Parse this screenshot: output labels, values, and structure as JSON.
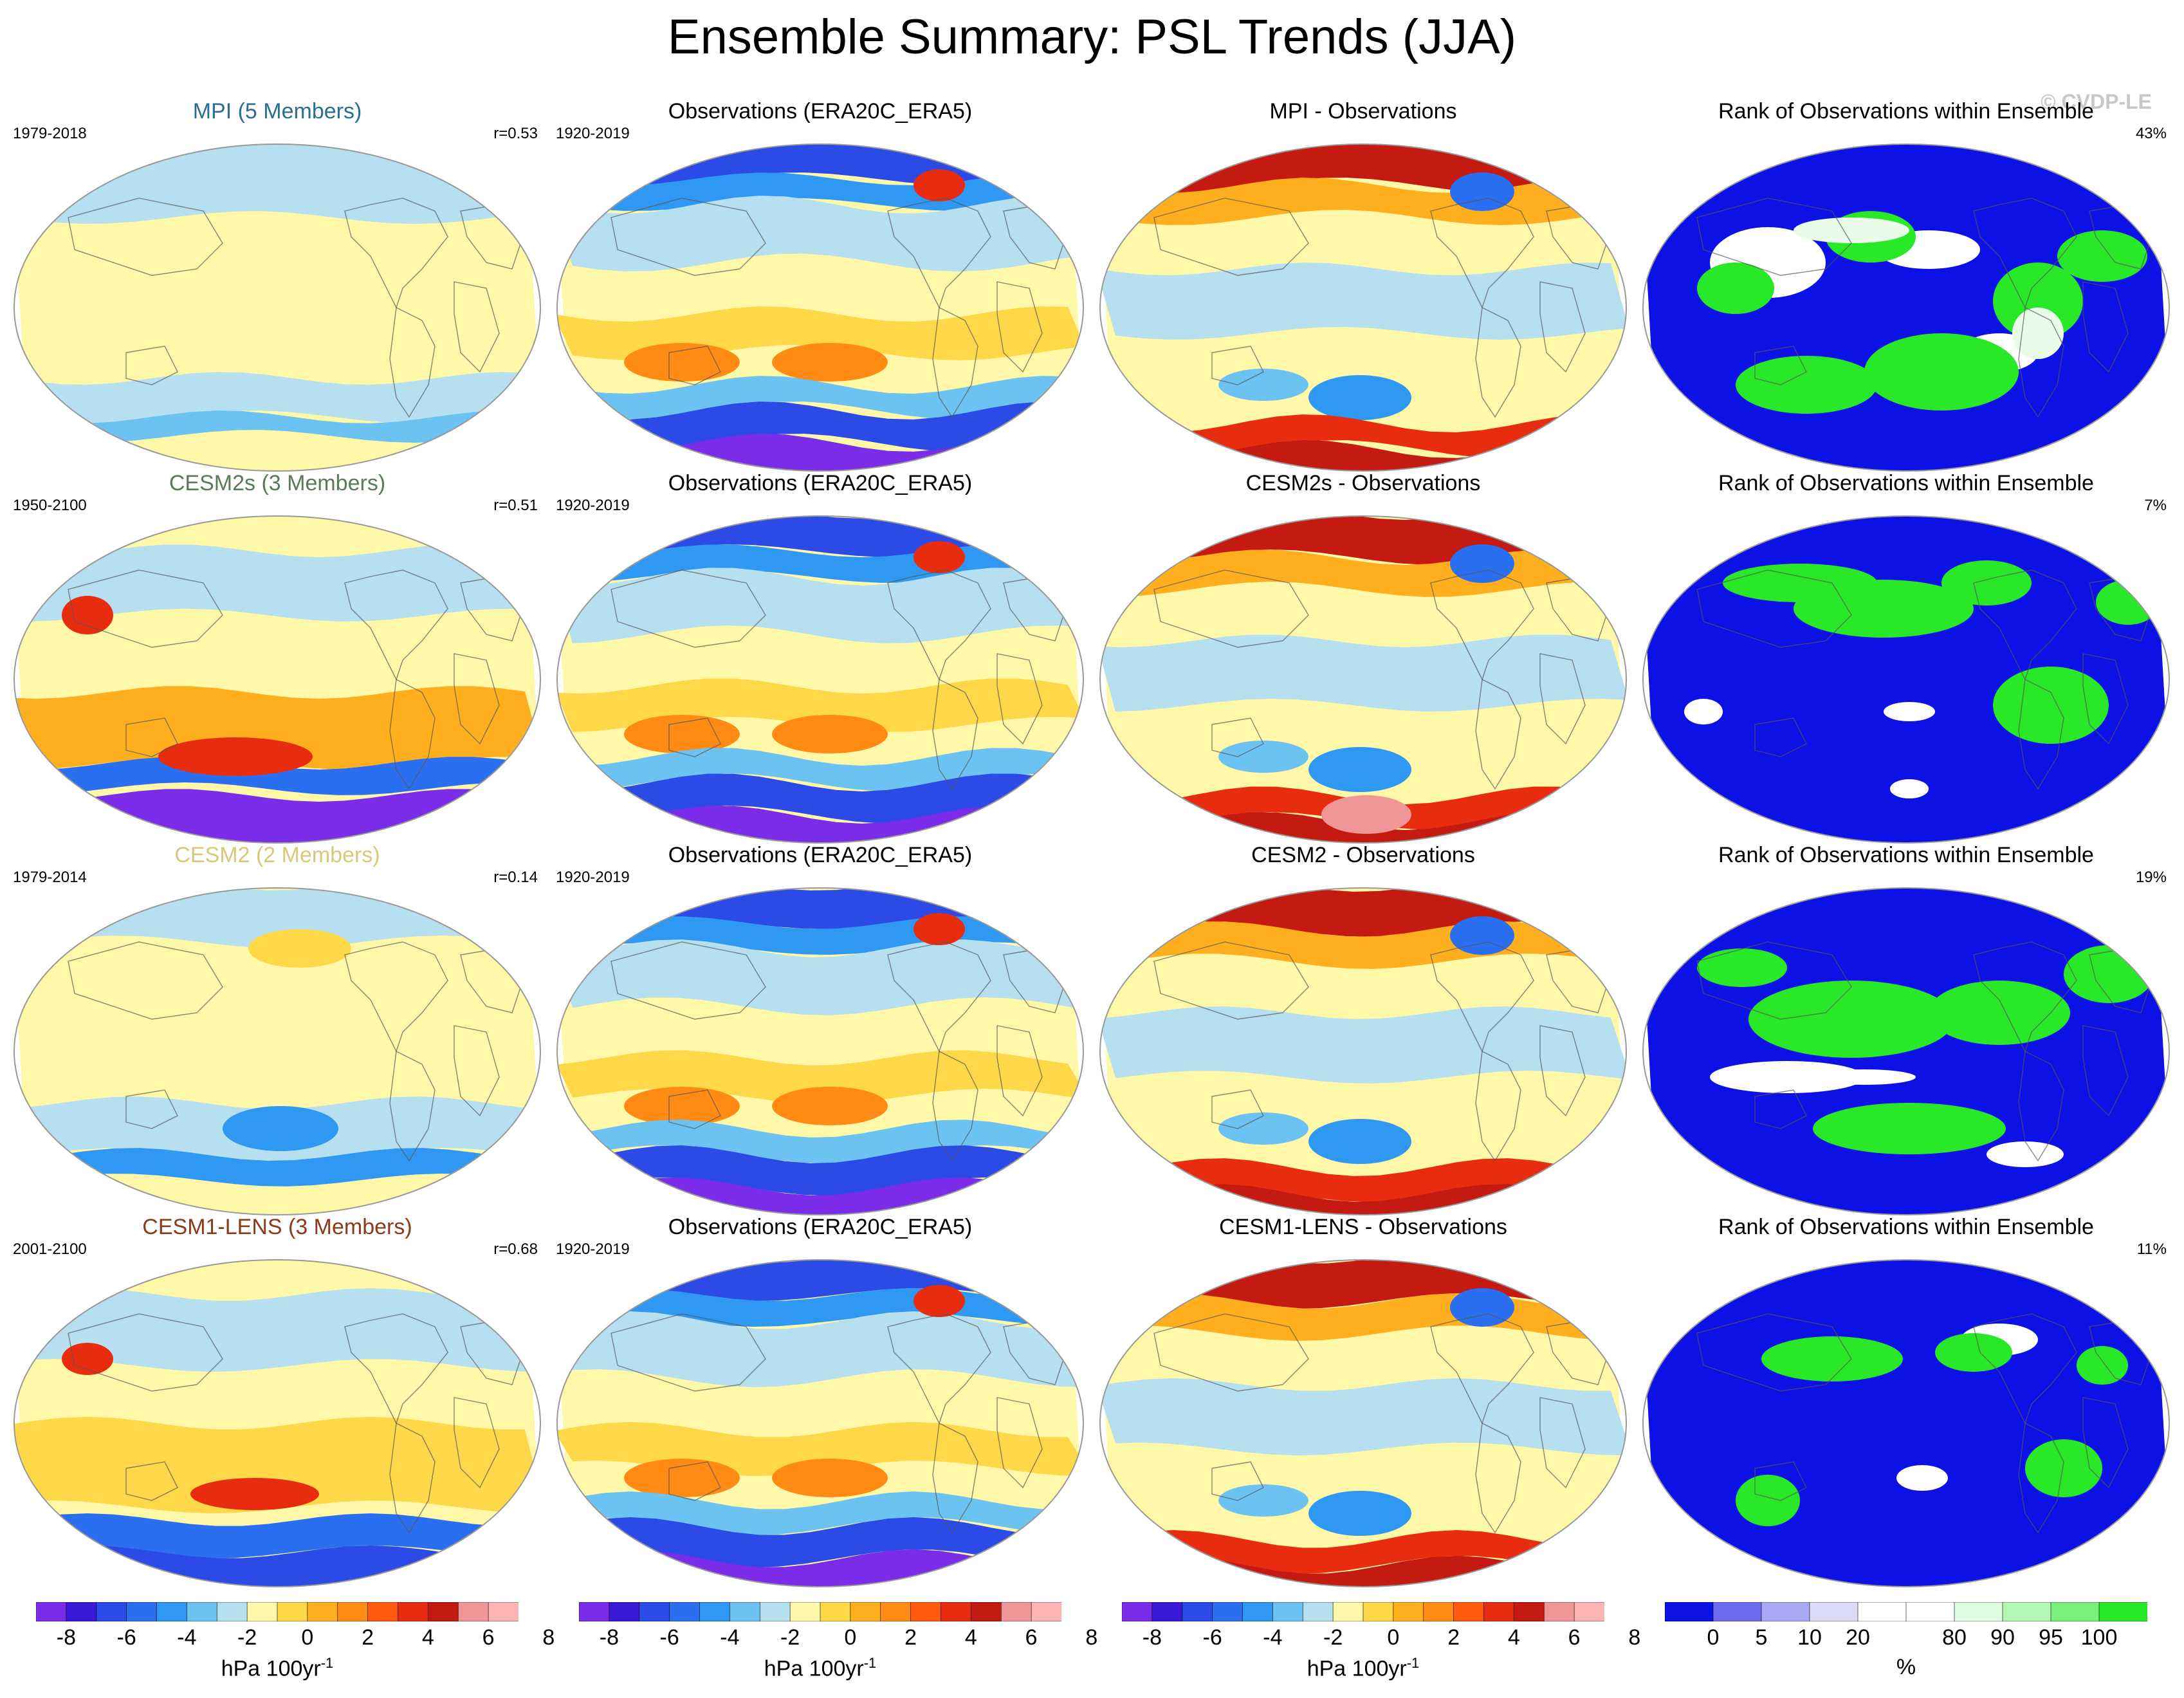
{
  "title": "Ensemble Summary: PSL Trends (JJA)",
  "watermark": "© CVDP-LE",
  "rows": [
    {
      "model_title": "MPI (5 Members)",
      "model_color": "#2a6f8f",
      "model_period": "1979-2018",
      "model_r": "r=0.53",
      "obs_title": "Observations (ERA20C_ERA5)",
      "obs_period": "1920-2019",
      "diff_title": "MPI - Observations",
      "rank_title": "Rank of Observations within Ensemble",
      "rank_pct": "43%"
    },
    {
      "model_title": "CESM2s (3 Members)",
      "model_color": "#5a7a5a",
      "model_period": "1950-2100",
      "model_r": "r=0.51",
      "obs_title": "Observations (ERA20C_ERA5)",
      "obs_period": "1920-2019",
      "diff_title": "CESM2s - Observations",
      "rank_title": "Rank of Observations within Ensemble",
      "rank_pct": "7%"
    },
    {
      "model_title": "CESM2 (2 Members)",
      "model_color": "#d8c87a",
      "model_period": "1979-2014",
      "model_r": "r=0.14",
      "obs_title": "Observations (ERA20C_ERA5)",
      "obs_period": "1920-2019",
      "diff_title": "CESM2 - Observations",
      "rank_title": "Rank of Observations within Ensemble",
      "rank_pct": "19%"
    },
    {
      "model_title": "CESM1-LENS (3 Members)",
      "model_color": "#8b3a1a",
      "model_period": "2001-2100",
      "model_r": "r=0.68",
      "obs_title": "Observations (ERA20C_ERA5)",
      "obs_period": "1920-2019",
      "diff_title": "CESM1-LENS - Observations",
      "rank_title": "Rank of Observations within Ensemble",
      "rank_pct": "11%"
    }
  ],
  "trend_colorbar": {
    "colors": [
      "#7b2ce8",
      "#3a1ad8",
      "#2b4ae6",
      "#2a6fef",
      "#2e98f2",
      "#6cc2f0",
      "#b6dff0",
      "#fff8a8",
      "#ffd84a",
      "#ffae1e",
      "#ff8a14",
      "#ff5a10",
      "#e82c10",
      "#c41a12",
      "#f09696",
      "#ffb4b4"
    ],
    "labels": [
      "-8",
      "-6",
      "-4",
      "-2",
      "0",
      "2",
      "4",
      "6",
      "8"
    ],
    "units": "hPa 100yr",
    "units_sup": "-1"
  },
  "rank_colorbar": {
    "colors": [
      "#0c12e6",
      "#6c6cf0",
      "#a8a8f4",
      "#dcdcfa",
      "#ffffff",
      "#ffffff",
      "#e0fce0",
      "#b4f6b4",
      "#7cf07c",
      "#28e828"
    ],
    "labels": [
      "0",
      "5",
      "10",
      "20",
      "80",
      "90",
      "95",
      "100"
    ],
    "units": "%"
  }
}
